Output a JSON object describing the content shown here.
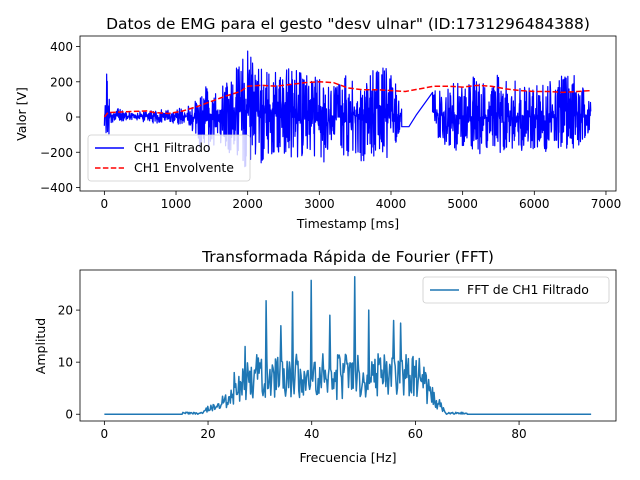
{
  "chart_data": [
    {
      "type": "line",
      "title": "Datos de EMG para el gesto \"desv ulnar\" (ID:1731296484388)",
      "xlabel": "Timestamp [ms]",
      "ylabel": "Valor [V]",
      "xlim": [
        -340,
        7140
      ],
      "ylim": [
        -420,
        460
      ],
      "xticks": [
        0,
        1000,
        2000,
        3000,
        4000,
        5000,
        6000,
        7000
      ],
      "yticks": [
        -400,
        -200,
        0,
        200,
        400
      ],
      "grid": false,
      "legend": {
        "position": "lower-left"
      },
      "series": [
        {
          "name": "CH1 Filtrado",
          "style": "solid",
          "color": "#0000ff",
          "description_envelope": [
            [
              0,
              -60,
              80
            ],
            [
              30,
              -300,
              340
            ],
            [
              80,
              -40,
              60
            ],
            [
              400,
              -20,
              25
            ],
            [
              700,
              -35,
              40
            ],
            [
              1000,
              -40,
              45
            ],
            [
              1200,
              -60,
              70
            ],
            [
              1400,
              -230,
              180
            ],
            [
              1600,
              -150,
              160
            ],
            [
              1800,
              -230,
              240
            ],
            [
              2000,
              -300,
              420
            ],
            [
              2200,
              -260,
              330
            ],
            [
              2400,
              -200,
              250
            ],
            [
              2600,
              -280,
              280
            ],
            [
              2800,
              -260,
              250
            ],
            [
              3000,
              -280,
              230
            ],
            [
              3200,
              -230,
              200
            ],
            [
              3400,
              -250,
              280
            ],
            [
              3600,
              -250,
              260
            ],
            [
              3800,
              -230,
              280
            ],
            [
              4000,
              -230,
              300
            ],
            [
              4150,
              -60,
              70
            ]
          ],
          "gap_line": [
            [
              4150,
              -55
            ],
            [
              4250,
              -55
            ],
            [
              4350,
              10
            ],
            [
              4580,
              140
            ]
          ],
          "second_segment_envelope": [
            [
              4580,
              -80,
              140
            ],
            [
              4800,
              -220,
              200
            ],
            [
              5000,
              -180,
              200
            ],
            [
              5200,
              -250,
              240
            ],
            [
              5400,
              -230,
              250
            ],
            [
              5600,
              -200,
              230
            ],
            [
              5800,
              -220,
              200
            ],
            [
              6000,
              -190,
              200
            ],
            [
              6200,
              -200,
              220
            ],
            [
              6400,
              -180,
              240
            ],
            [
              6600,
              -200,
              240
            ],
            [
              6790,
              -80,
              100
            ]
          ]
        },
        {
          "name": "CH1 Envolvente",
          "style": "dashed",
          "color": "#ff0000",
          "x": [
            0,
            50,
            300,
            600,
            700,
            900,
            1100,
            1300,
            1500,
            1700,
            1900,
            2000,
            2200,
            2400,
            2600,
            2800,
            3000,
            3200,
            3300,
            3400,
            3600,
            3800,
            4000,
            4200,
            4600,
            4800,
            5000,
            5200,
            5400,
            5600,
            5800,
            6000,
            6200,
            6400,
            6600,
            6790
          ],
          "y": [
            0,
            25,
            30,
            35,
            25,
            20,
            35,
            60,
            90,
            120,
            145,
            175,
            180,
            175,
            185,
            195,
            200,
            195,
            180,
            165,
            155,
            155,
            150,
            145,
            175,
            175,
            170,
            180,
            175,
            160,
            150,
            145,
            145,
            140,
            145,
            150
          ]
        }
      ]
    },
    {
      "type": "line",
      "title": "Transformada Rápida de Fourier (FFT)",
      "xlabel": "Frecuencia [Hz]",
      "ylabel": "Amplitud",
      "xlim": [
        -4.7,
        98.7
      ],
      "ylim": [
        -1.3,
        27.7
      ],
      "xticks": [
        0,
        20,
        40,
        60,
        80
      ],
      "yticks": [
        0,
        10,
        20
      ],
      "grid": false,
      "legend": {
        "position": "top-right"
      },
      "series": [
        {
          "name": "FFT de CH1 Filtrado",
          "color": "#1f77b4",
          "x_range": [
            0,
            94
          ],
          "peaks": [
            [
              31.2,
              21.8
            ],
            [
              36.3,
              23.5
            ],
            [
              39.9,
              25.7
            ],
            [
              48.3,
              26.4
            ],
            [
              43.5,
              19
            ],
            [
              51,
              20
            ],
            [
              27.2,
              13
            ],
            [
              55.8,
              18
            ],
            [
              57.2,
              17.5
            ],
            [
              34,
              17
            ],
            [
              25,
              8
            ],
            [
              62,
              8
            ],
            [
              20,
              1.5
            ],
            [
              22,
              2
            ]
          ]
        }
      ]
    }
  ]
}
